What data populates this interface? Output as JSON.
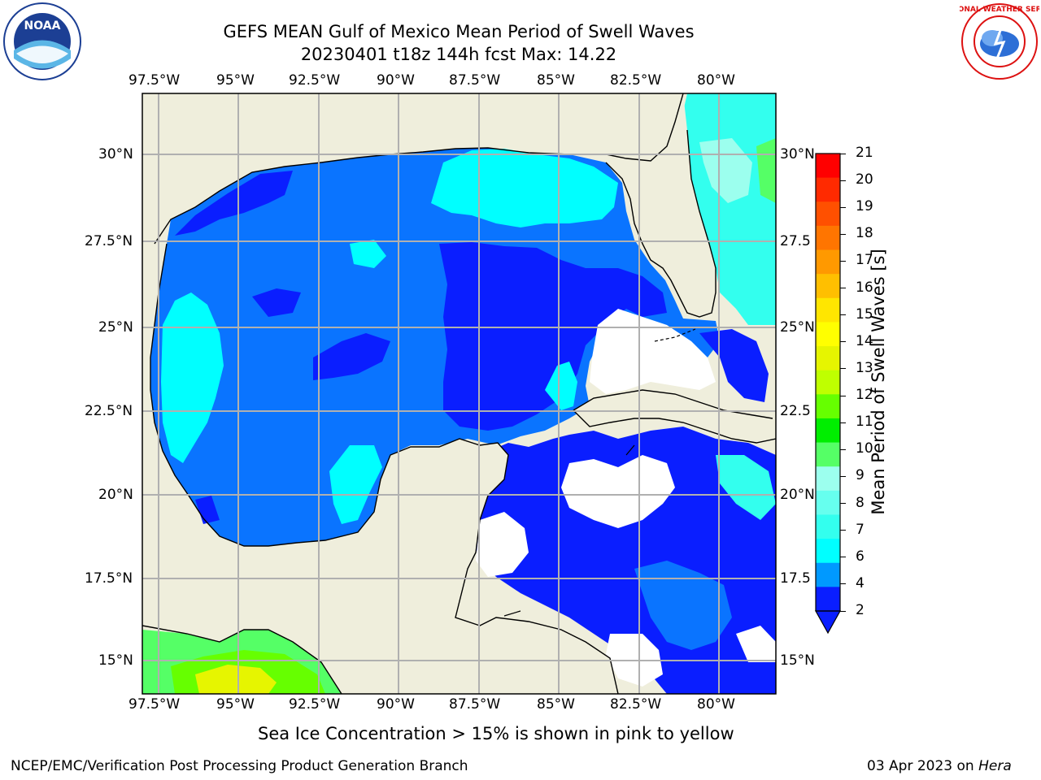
{
  "title": {
    "line1": "GEFS MEAN Gulf of Mexico Mean Period of Swell Waves",
    "line2": "20230401 t18z 144h fcst   Max: 14.22"
  },
  "map": {
    "lon_ticks": [
      "97.5°W",
      "95°W",
      "92.5°W",
      "90°W",
      "87.5°W",
      "85°W",
      "82.5°W",
      "80°W"
    ],
    "lat_ticks_left": [
      "30°N",
      "27.5°N",
      "25°N",
      "22.5°N",
      "20°N",
      "17.5°N",
      "15°N"
    ],
    "lat_ticks_right": [
      "30°N",
      "27.5",
      "25°N",
      "22.5",
      "20°N",
      "17.5",
      "15°N"
    ],
    "extent": {
      "lon_min": -98.0,
      "lon_max": -78.2,
      "lat_min": 14.0,
      "lat_max": 31.8
    },
    "land_color": "#efeedc",
    "grid_color": "#b0b0b0"
  },
  "colorbar": {
    "label": "Mean Period of Swell Waves [s]",
    "ticks": [
      "21",
      "20",
      "19",
      "18",
      "17",
      "16",
      "15",
      "14",
      "13",
      "12",
      "11",
      "10",
      "9",
      "8",
      "7",
      "6",
      "4",
      "2"
    ],
    "colors": [
      "#ff0000",
      "#ff2a00",
      "#ff5000",
      "#ff7500",
      "#ff9900",
      "#ffbf00",
      "#ffe600",
      "#ffff00",
      "#e6f500",
      "#bfff00",
      "#66ff00",
      "#00ee00",
      "#55ff66",
      "#9cffee",
      "#66ffee",
      "#33ffee",
      "#00ffff",
      "#0099ff",
      "#0a1eff"
    ]
  },
  "note": "Sea Ice Concentration > 15% is shown in pink to yellow",
  "footer": {
    "left": "NCEP/EMC/Verification Post Processing Product Generation Branch",
    "right_date": "03 Apr 2023 on ",
    "right_host": "Hera"
  },
  "logos": {
    "noaa": "NOAA",
    "nws": "NATIONAL WEATHER SERVICE"
  }
}
